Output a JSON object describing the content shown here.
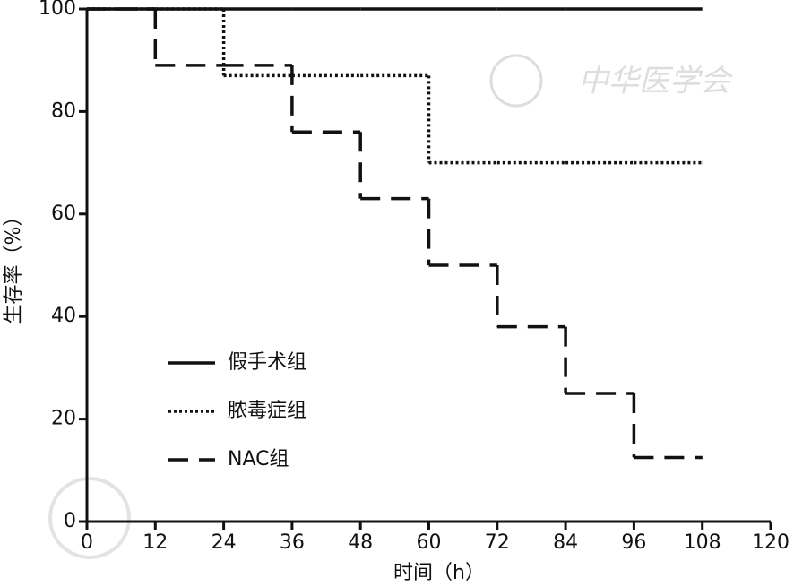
{
  "chart_data": {
    "type": "line",
    "step": "post",
    "x_label": "时间（h）",
    "y_label": "生存率（%）",
    "watermark": "中华医学会",
    "x": [
      0,
      12,
      24,
      36,
      48,
      60,
      72,
      84,
      96,
      108
    ],
    "series": [
      {
        "name": "假手术组",
        "color": "#111111",
        "style": "solid",
        "values": [
          100,
          100,
          100,
          100,
          100,
          100,
          100,
          100,
          100,
          100
        ]
      },
      {
        "name": "脓毒症组",
        "color": "#111111",
        "style": "dotted",
        "values": [
          100,
          100,
          87,
          87,
          87,
          70,
          70,
          70,
          70,
          70
        ]
      },
      {
        "name": "NAC组",
        "color": "#111111",
        "style": "dashed",
        "values": [
          100,
          89,
          89,
          76,
          63,
          50,
          38,
          25,
          12.5,
          12.5
        ]
      }
    ],
    "xlim": [
      0,
      120
    ],
    "xticks": [
      0,
      12,
      24,
      36,
      48,
      60,
      72,
      84,
      96,
      108,
      120
    ],
    "ylim": [
      0,
      100
    ],
    "yticks": [
      0,
      20,
      40,
      60,
      80,
      100
    ],
    "grid": false,
    "legend": "lower left"
  }
}
